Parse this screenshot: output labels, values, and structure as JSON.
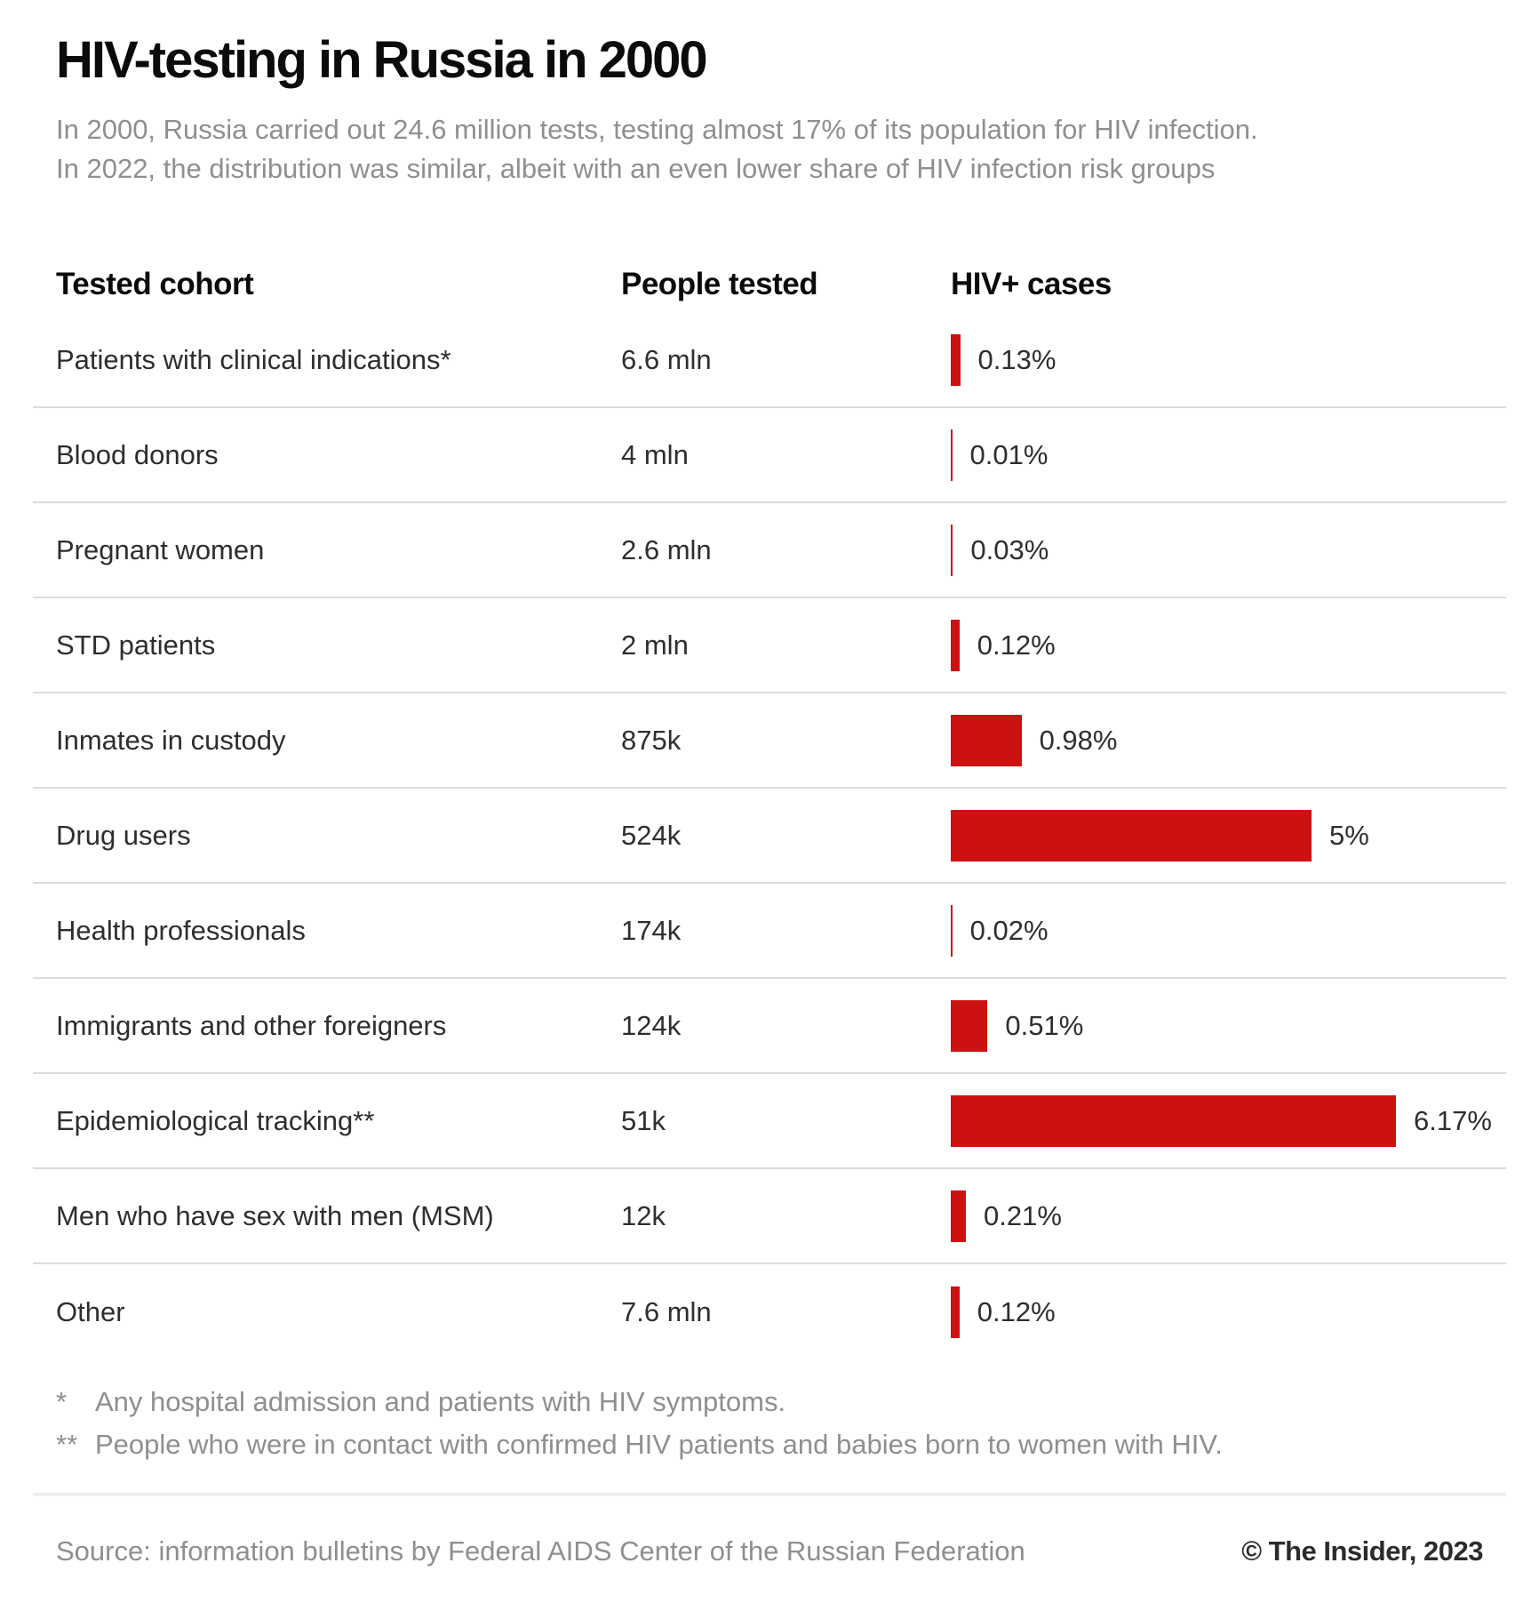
{
  "page": {
    "title": "HIV-testing in Russia in 2000",
    "subtitle_line1": "In 2000, Russia carried out 24.6 million tests, testing almost 17% of its population for HIV infection.",
    "subtitle_line2": "In 2022, the distribution was similar, albeit with an even lower share of HIV infection risk groups",
    "footnote1_marker": "*",
    "footnote1_text": "Any hospital admission and patients with HIV symptoms.",
    "footnote2_marker": "**",
    "footnote2_text": "People who were in contact with confirmed HIV patients and babies born to women with HIV.",
    "source": "Source: information bulletins by Federal AIDS Center of the Russian Federation",
    "credit": "© The Insider, 2023"
  },
  "columns": {
    "cohort": "Tested cohort",
    "tested": "People tested",
    "cases": "HIV+ cases"
  },
  "chart_data": {
    "type": "bar",
    "orientation": "horizontal",
    "title": "HIV-testing in Russia in 2000",
    "value_unit": "share of HIV-positive results among people tested, %",
    "x_range_pct": [
      0,
      6.17
    ],
    "bar_color": "#cc1111",
    "grid": false,
    "legend": "none",
    "categories": [
      "Patients with clinical indications*",
      "Blood donors",
      "Pregnant women",
      "STD patients",
      "Inmates in custody",
      "Drug users",
      "Health professionals",
      "Immigrants and other foreigners",
      "Epidemiological tracking**",
      "Men who have sex with men (MSM)",
      "Other"
    ],
    "series": [
      {
        "name": "People tested",
        "values": [
          "6.6 mln",
          "4 mln",
          "2.6 mln",
          "2 mln",
          "875k",
          "524k",
          "174k",
          "124k",
          "51k",
          "12k",
          "7.6 mln"
        ]
      },
      {
        "name": "HIV+ cases (%)",
        "values": [
          0.13,
          0.01,
          0.03,
          0.12,
          0.98,
          5,
          0.02,
          0.51,
          6.17,
          0.21,
          0.12
        ]
      }
    ],
    "rows": [
      {
        "cohort": "Patients with clinical indications*",
        "people_tested": "6.6 mln",
        "hiv_pct": 0.13,
        "hiv_label": "0.13%"
      },
      {
        "cohort": "Blood donors",
        "people_tested": "4 mln",
        "hiv_pct": 0.01,
        "hiv_label": "0.01%"
      },
      {
        "cohort": "Pregnant women",
        "people_tested": "2.6 mln",
        "hiv_pct": 0.03,
        "hiv_label": "0.03%"
      },
      {
        "cohort": "STD patients",
        "people_tested": "2 mln",
        "hiv_pct": 0.12,
        "hiv_label": "0.12%"
      },
      {
        "cohort": "Inmates in custody",
        "people_tested": "875k",
        "hiv_pct": 0.98,
        "hiv_label": "0.98%"
      },
      {
        "cohort": "Drug users",
        "people_tested": "524k",
        "hiv_pct": 5,
        "hiv_label": "5%"
      },
      {
        "cohort": "Health professionals",
        "people_tested": "174k",
        "hiv_pct": 0.02,
        "hiv_label": "0.02%"
      },
      {
        "cohort": "Immigrants and other foreigners",
        "people_tested": "124k",
        "hiv_pct": 0.51,
        "hiv_label": "0.51%"
      },
      {
        "cohort": "Epidemiological tracking**",
        "people_tested": "51k",
        "hiv_pct": 6.17,
        "hiv_label": "6.17%"
      },
      {
        "cohort": "Men who have sex with men (MSM)",
        "people_tested": "12k",
        "hiv_pct": 0.21,
        "hiv_label": "0.21%"
      },
      {
        "cohort": "Other",
        "people_tested": "7.6 mln",
        "hiv_pct": 0.12,
        "hiv_label": "0.12%"
      }
    ]
  }
}
